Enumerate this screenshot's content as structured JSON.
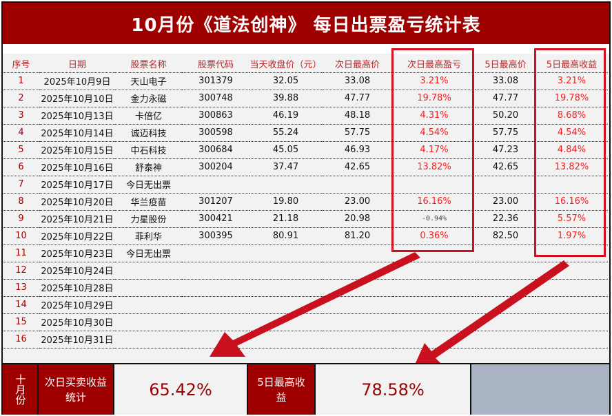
{
  "title": "10月份《道法创神》 每日出票盈亏统计表",
  "headers": [
    "序号",
    "日期",
    "股票名称",
    "股票代码",
    "当天收盘价（元）",
    "次日最高价",
    "次日最高盈亏",
    "5日最高价",
    "5日最高收益"
  ],
  "rows": [
    [
      "1",
      "2025年10月9日",
      "天山电子",
      "301379",
      "32.05",
      "33.08",
      "3.21%",
      "33.08",
      "3.21%"
    ],
    [
      "2",
      "2025年10月10日",
      "金力永磁",
      "300748",
      "39.88",
      "47.77",
      "19.78%",
      "47.77",
      "19.78%"
    ],
    [
      "3",
      "2025年10月13日",
      "卡倍亿",
      "300863",
      "46.19",
      "48.18",
      "4.31%",
      "50.20",
      "8.68%"
    ],
    [
      "4",
      "2025年10月14日",
      "诚迈科技",
      "300598",
      "55.24",
      "57.75",
      "4.54%",
      "57.75",
      "4.54%"
    ],
    [
      "5",
      "2025年10月15日",
      "中石科技",
      "300684",
      "45.05",
      "46.93",
      "4.17%",
      "47.23",
      "4.84%"
    ],
    [
      "6",
      "2025年10月16日",
      "舒泰神",
      "300204",
      "37.47",
      "42.65",
      "13.82%",
      "42.65",
      "13.82%"
    ],
    [
      "7",
      "2025年10月17日",
      "今日无出票",
      "",
      "",
      "",
      "",
      "",
      ""
    ],
    [
      "8",
      "2025年10月20日",
      "华兰疫苗",
      "301207",
      "19.80",
      "23.00",
      "16.16%",
      "23.00",
      "16.16%"
    ],
    [
      "9",
      "2025年10月21日",
      "力星股份",
      "300421",
      "21.18",
      "20.98",
      "-0.94%",
      "22.36",
      "5.57%"
    ],
    [
      "10",
      "2025年10月22日",
      "菲利华",
      "300395",
      "80.91",
      "81.20",
      "0.36%",
      "82.50",
      "1.97%"
    ],
    [
      "11",
      "2025年10月23日",
      "今日无出票",
      "",
      "",
      "",
      "",
      "",
      ""
    ],
    [
      "12",
      "2025年10月24日",
      "",
      "",
      "",
      "",
      "",
      "",
      ""
    ],
    [
      "13",
      "2025年10月28日",
      "",
      "",
      "",
      "",
      "",
      "",
      ""
    ],
    [
      "14",
      "2025年10月29日",
      "",
      "",
      "",
      "",
      "",
      "",
      ""
    ],
    [
      "15",
      "2025年10月30日",
      "",
      "",
      "",
      "",
      "",
      "",
      ""
    ],
    [
      "16",
      "2025年10月31日",
      "",
      "",
      "",
      "",
      "",
      "",
      ""
    ]
  ],
  "summary": {
    "month_label": "十月份",
    "next_day_label": "次日买卖收益统计",
    "next_day_value": "65.42%",
    "five_day_label": "5日最高收益",
    "five_day_value": "78.58%"
  },
  "colors": {
    "title_bg": "#9e0000",
    "highlight_box": "#d0101e",
    "positive": "#ff1a1a",
    "arrow": "#c8101e"
  }
}
